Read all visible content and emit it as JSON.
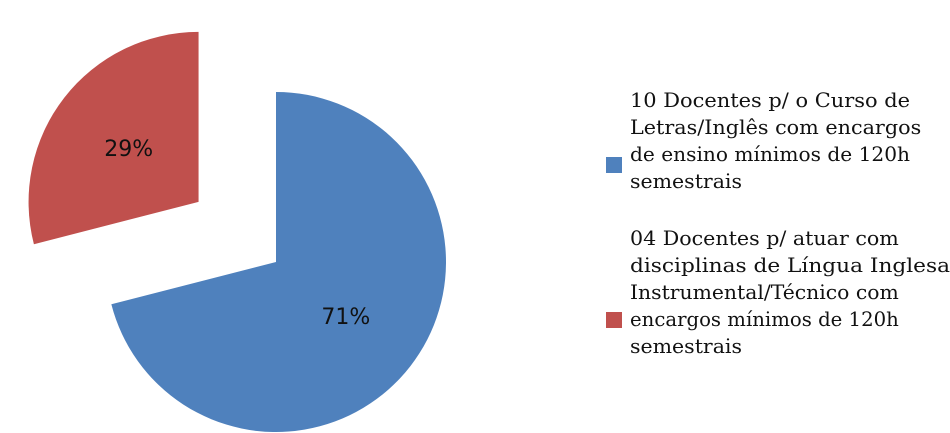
{
  "chart_data": {
    "type": "pie",
    "slices": [
      {
        "value": 71,
        "label": "71%",
        "color": "#4f81bd",
        "legend_lines": [
          "10 Docentes p/ o Curso de",
          "Letras/Inglês com encargos",
          "de ensino mínimos de 120h",
          "semestrais"
        ]
      },
      {
        "value": 29,
        "label": "29%",
        "color": "#c0504d",
        "exploded": true,
        "legend_lines": [
          "04 Docentes p/ atuar com",
          "disciplinas de Língua Inglesa",
          "Instrumental/Técnico com",
          "encargos mínimos de 120h",
          "semestrais"
        ]
      }
    ],
    "legend_position": "right"
  }
}
